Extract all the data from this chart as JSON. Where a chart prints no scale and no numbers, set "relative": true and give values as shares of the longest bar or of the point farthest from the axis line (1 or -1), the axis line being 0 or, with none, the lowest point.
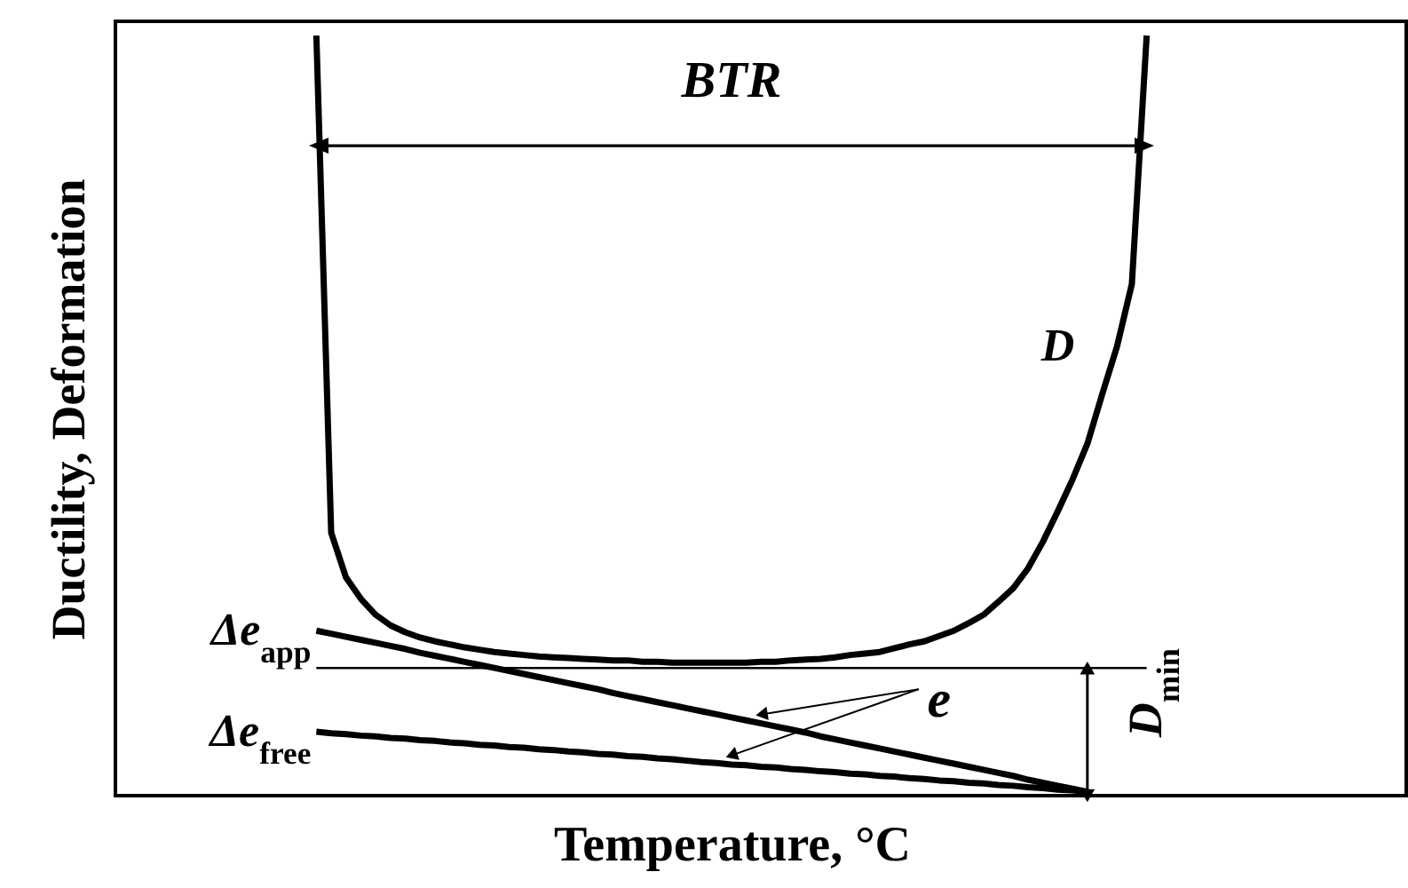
{
  "chart_data": {
    "type": "line",
    "relative": true,
    "xlabel": "Temperature, °C",
    "ylabel": "Ductility, Deformation",
    "categories": [
      null,
      null,
      null,
      null,
      null,
      null,
      null,
      null,
      null,
      null,
      null,
      null,
      null,
      null,
      null,
      null,
      null,
      null,
      null,
      null,
      null,
      null,
      null,
      null,
      null,
      null,
      null,
      null,
      null,
      null,
      null,
      null,
      null,
      null,
      null,
      null,
      null,
      null,
      null,
      null,
      null,
      null,
      null,
      null,
      null,
      null,
      null,
      null,
      null,
      null,
      null,
      null,
      null,
      null,
      null,
      null,
      null
    ],
    "series": [
      {
        "name": "D",
        "color": "#000000",
        "values": [
          1.0,
          0.346,
          0.287,
          0.259,
          0.238,
          0.224,
          0.215,
          0.208,
          0.203,
          0.199,
          0.195,
          0.192,
          0.189,
          0.187,
          0.185,
          0.183,
          0.182,
          0.181,
          0.18,
          0.179,
          0.178,
          0.178,
          0.176,
          0.176,
          0.175,
          0.175,
          0.175,
          0.175,
          0.175,
          0.175,
          0.176,
          0.176,
          0.178,
          0.179,
          0.18,
          0.182,
          0.185,
          0.187,
          0.189,
          0.194,
          0.199,
          0.203,
          0.21,
          0.217,
          0.227,
          0.238,
          0.255,
          0.273,
          0.299,
          0.334,
          0.374,
          0.416,
          0.463,
          0.528,
          0.591,
          0.673,
          1.0
        ]
      },
      {
        "name": "Δe$_{app}$",
        "color": "#000000",
        "values": [
          0.217,
          0.213,
          0.209,
          0.205,
          0.201,
          0.197,
          0.193,
          0.188,
          0.184,
          0.18,
          0.176,
          0.172,
          0.168,
          0.164,
          0.16,
          0.156,
          0.152,
          0.148,
          0.144,
          0.14,
          0.135,
          0.131,
          0.127,
          0.123,
          0.119,
          0.115,
          0.111,
          0.107,
          0.103,
          0.099,
          0.095,
          0.091,
          0.087,
          0.083,
          0.078,
          0.074,
          0.07,
          0.066,
          0.062,
          0.058,
          0.054,
          0.05,
          0.046,
          0.042,
          0.038,
          0.034,
          0.03,
          0.026,
          0.021,
          0.017,
          0.013,
          0.009,
          0.005,
          null,
          null,
          null,
          null
        ]
      },
      {
        "name": "Δe$_{free}$",
        "color": "#000000",
        "values": [
          0.084,
          0.082,
          0.081,
          0.079,
          0.078,
          0.076,
          0.075,
          0.073,
          0.072,
          0.07,
          0.069,
          0.067,
          0.066,
          0.064,
          0.063,
          0.061,
          0.06,
          0.058,
          0.057,
          0.055,
          0.054,
          0.052,
          0.051,
          0.049,
          0.048,
          0.046,
          0.044,
          0.043,
          0.041,
          0.04,
          0.038,
          0.037,
          0.035,
          0.034,
          0.032,
          0.031,
          0.029,
          0.028,
          0.026,
          0.025,
          0.023,
          0.022,
          0.02,
          0.019,
          0.017,
          0.016,
          0.014,
          0.013,
          0.011,
          0.01,
          0.008,
          0.007,
          0.005,
          null,
          null,
          null,
          null
        ]
      }
    ],
    "ref_lines": [
      {
        "axis": "y",
        "value": 0.168,
        "label": "D$_{min}$"
      }
    ],
    "annotations": [
      "BTR",
      "e"
    ]
  }
}
